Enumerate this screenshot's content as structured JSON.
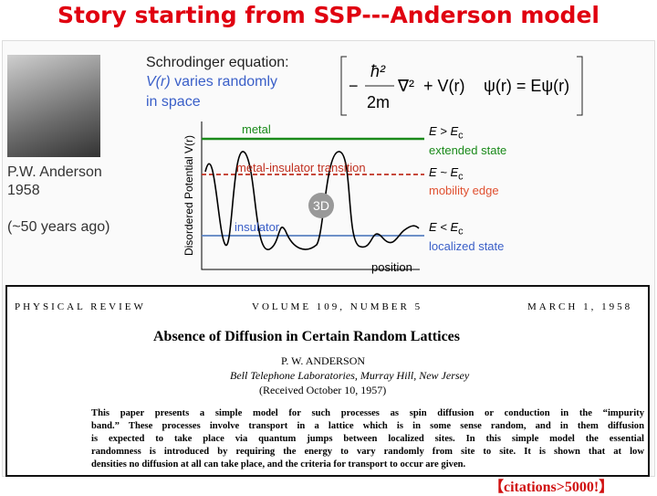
{
  "title": "Story starting from SSP---Anderson model",
  "intro": {
    "heading": "Schrodinger equation:",
    "line1_italic": "V(r)",
    "line1_rest": " varies randomly",
    "line2": "in space"
  },
  "equation": {
    "minus": "−",
    "numerator": "ħ²",
    "denominator": "2m",
    "operator": "∇²",
    "potential": "+ V(r)",
    "rhs": "ψ(r) = Eψ(r)"
  },
  "person": {
    "name": "P.W. Anderson",
    "year": "1958",
    "note": "(~50 years ago)"
  },
  "diagram": {
    "y_axis": "Disordered Potential V(r)",
    "x_axis": "position",
    "badge": "3D",
    "levels": [
      {
        "line_label": "metal",
        "energy": "E > E",
        "sub": "c",
        "state": "extended state"
      },
      {
        "line_label": "metal-insulator transition",
        "energy": "E ~ E",
        "sub": "c",
        "state": "mobility edge"
      },
      {
        "line_label": "insulator",
        "energy": "E < E",
        "sub": "c",
        "state": "localized state"
      }
    ]
  },
  "paper": {
    "journal": "PHYSICAL REVIEW",
    "volume": "VOLUME 109, NUMBER 5",
    "date": "MARCH 1, 1958",
    "title": "Absence of Diffusion in Certain Random Lattices",
    "author": "P. W. ANDERSON",
    "affiliation": "Bell Telephone Laboratories, Murray Hill, New Jersey",
    "received": "(Received October 10, 1957)",
    "abstract": [
      "This paper presents a simple model for such processes as spin diffusion or conduction in the “impurity",
      "band.” These processes involve transport in a lattice which is in some sense random, and in them diffusion",
      "is expected to take place via quantum jumps between localized sites. In this simple model the essential",
      "randomness is introduced by requiring the energy to vary randomly from site to site. It is shown that at low",
      "densities no diffusion at all can take place, and the criteria for transport to occur are given."
    ]
  },
  "footer": "【citations>5000!】"
}
